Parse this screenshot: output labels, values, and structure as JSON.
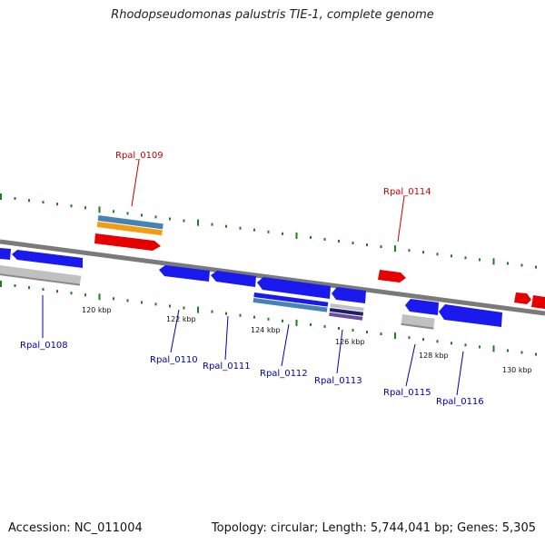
{
  "title": "Rhodopseudomonas palustris TIE-1, complete genome",
  "footer": {
    "accession": "Accession: NC_011004",
    "info": "Topology: circular; Length: 5,744,041 bp; Genes: 5,305"
  },
  "colors": {
    "forward_gene": "#e60000",
    "reverse_gene": "#1a1aee",
    "forward_label": "#cc0000",
    "reverse_label": "#0000aa",
    "backbone": "#7a7a7a",
    "tick": "#1e7d1e",
    "steelblue_feature": "#4682b4",
    "orange_feature": "#f39c12",
    "gray_feature": "#c0c0c0",
    "navy_feature": "#1f1f6e"
  },
  "scale": {
    "ticks": [
      "120 kbp",
      "122 kbp",
      "124 kbp",
      "126 kbp",
      "128 kbp",
      "130 kbp"
    ]
  },
  "gene_labels": [
    {
      "name": "Rpal_0108",
      "strand": "reverse"
    },
    {
      "name": "Rpal_0109",
      "strand": "forward"
    },
    {
      "name": "Rpal_0110",
      "strand": "reverse"
    },
    {
      "name": "Rpal_0111",
      "strand": "reverse"
    },
    {
      "name": "Rpal_0112",
      "strand": "reverse"
    },
    {
      "name": "Rpal_0113",
      "strand": "reverse"
    },
    {
      "name": "Rpal_0114",
      "strand": "forward"
    },
    {
      "name": "Rpal_0115",
      "strand": "reverse"
    },
    {
      "name": "Rpal_0116",
      "strand": "reverse"
    }
  ]
}
